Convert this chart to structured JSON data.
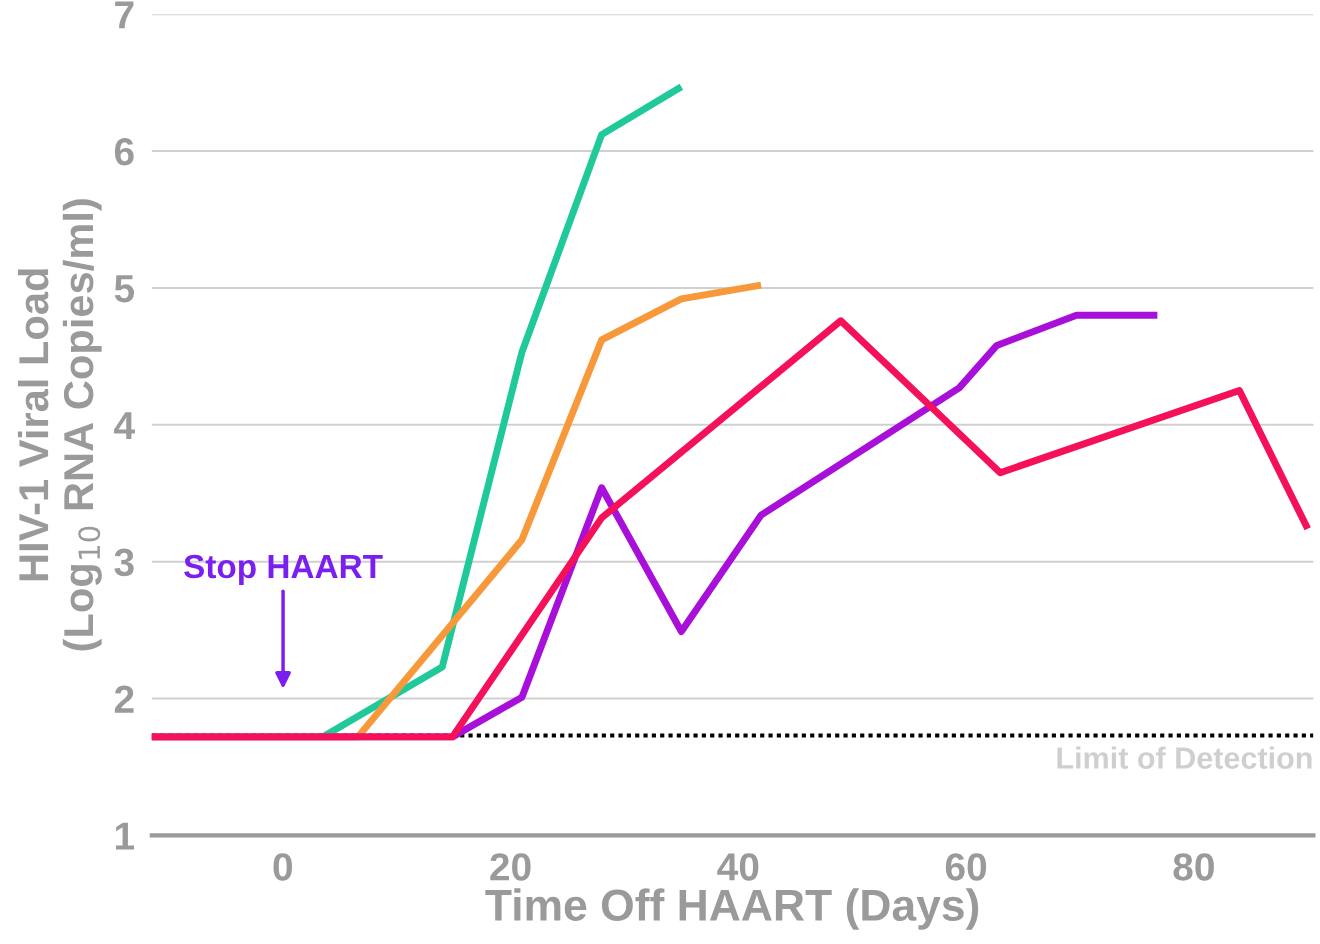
{
  "chart_data": {
    "type": "line",
    "xlabel": "Time Off HAART (Days)",
    "ylabel": "HIV-1 Viral Load\n(Log$_{10}$ RNA Copies/ml)",
    "xlim": [
      -11.5,
      90.5
    ],
    "xticks": [
      0,
      20,
      40,
      60,
      80
    ],
    "ylim": [
      1,
      7
    ],
    "yticks": [
      1,
      2,
      3,
      4,
      5,
      6,
      7
    ],
    "grid": "y",
    "line_style": "solid",
    "marker": "none",
    "series": [
      {
        "color": "#1fc99a",
        "x": [
          3.5,
          14,
          21,
          28,
          35
        ],
        "values": [
          1.72,
          2.23,
          4.53,
          6.12,
          6.47
        ]
      },
      {
        "color": "#f7993a",
        "x": [
          -11.5,
          6.6,
          21,
          28,
          35,
          42
        ],
        "values": [
          1.72,
          1.72,
          3.16,
          4.62,
          4.92,
          5.02
        ]
      },
      {
        "color": "#a80fd9",
        "x": [
          -11.5,
          14.9,
          21,
          28,
          35,
          42,
          59.4,
          62.7,
          69.7,
          76.8
        ],
        "values": [
          1.72,
          1.72,
          2.01,
          3.54,
          2.49,
          3.34,
          4.27,
          4.58,
          4.8,
          4.8
        ]
      },
      {
        "color": "#f5105a",
        "x": [
          -11.5,
          14.9,
          28,
          49,
          63,
          84,
          90
        ],
        "values": [
          1.72,
          1.72,
          3.32,
          4.76,
          3.65,
          4.25,
          3.24
        ]
      }
    ],
    "ref_lines": [
      {
        "axis": "y",
        "value": 1.73,
        "label": "Limit of Detection",
        "color": "#000000",
        "line_style": "dotted"
      }
    ],
    "annotations": [
      "Stop HAART"
    ]
  }
}
